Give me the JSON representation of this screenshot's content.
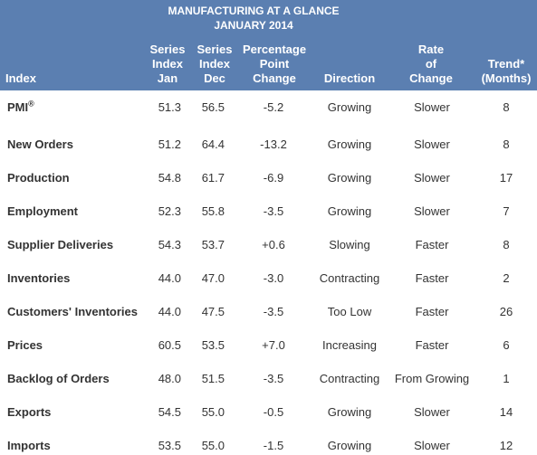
{
  "title": {
    "line1": "MANUFACTURING AT A GLANCE",
    "line2": "JANUARY 2014"
  },
  "columns": {
    "index": "Index",
    "jan": [
      "Series",
      "Index",
      "Jan"
    ],
    "dec": [
      "Series",
      "Index",
      "Dec"
    ],
    "change": [
      "Percentage",
      "Point",
      "Change"
    ],
    "direction": "Direction",
    "rate": [
      "Rate",
      "of",
      "Change"
    ],
    "trend": [
      "Trend*",
      "(Months)"
    ]
  },
  "rows": [
    {
      "index": "PMI",
      "sup": "®",
      "jan": "51.3",
      "dec": "56.5",
      "change": "-5.2",
      "direction": "Growing",
      "rate": "Slower",
      "trend": "8"
    },
    {
      "index": "New Orders",
      "jan": "51.2",
      "dec": "64.4",
      "change": "-13.2",
      "direction": "Growing",
      "rate": "Slower",
      "trend": "8"
    },
    {
      "index": "Production",
      "jan": "54.8",
      "dec": "61.7",
      "change": "-6.9",
      "direction": "Growing",
      "rate": "Slower",
      "trend": "17"
    },
    {
      "index": "Employment",
      "jan": "52.3",
      "dec": "55.8",
      "change": "-3.5",
      "direction": "Growing",
      "rate": "Slower",
      "trend": "7"
    },
    {
      "index": "Supplier Deliveries",
      "jan": "54.3",
      "dec": "53.7",
      "change": "+0.6",
      "direction": "Slowing",
      "rate": "Faster",
      "trend": "8"
    },
    {
      "index": "Inventories",
      "jan": "44.0",
      "dec": "47.0",
      "change": "-3.0",
      "direction": "Contracting",
      "rate": "Faster",
      "trend": "2"
    },
    {
      "index": "Customers' Inventories",
      "jan": "44.0",
      "dec": "47.5",
      "change": "-3.5",
      "direction": "Too Low",
      "rate": "Faster",
      "trend": "26"
    },
    {
      "index": "Prices",
      "jan": "60.5",
      "dec": "53.5",
      "change": "+7.0",
      "direction": "Increasing",
      "rate": "Faster",
      "trend": "6"
    },
    {
      "index": "Backlog of Orders",
      "jan": "48.0",
      "dec": "51.5",
      "change": "-3.5",
      "direction": "Contracting",
      "rate": "From Growing",
      "trend": "1"
    },
    {
      "index": "Exports",
      "jan": "54.5",
      "dec": "55.0",
      "change": "-0.5",
      "direction": "Growing",
      "rate": "Slower",
      "trend": "14"
    },
    {
      "index": "Imports",
      "jan": "53.5",
      "dec": "55.0",
      "change": "-1.5",
      "direction": "Growing",
      "rate": "Slower",
      "trend": "12"
    }
  ]
}
